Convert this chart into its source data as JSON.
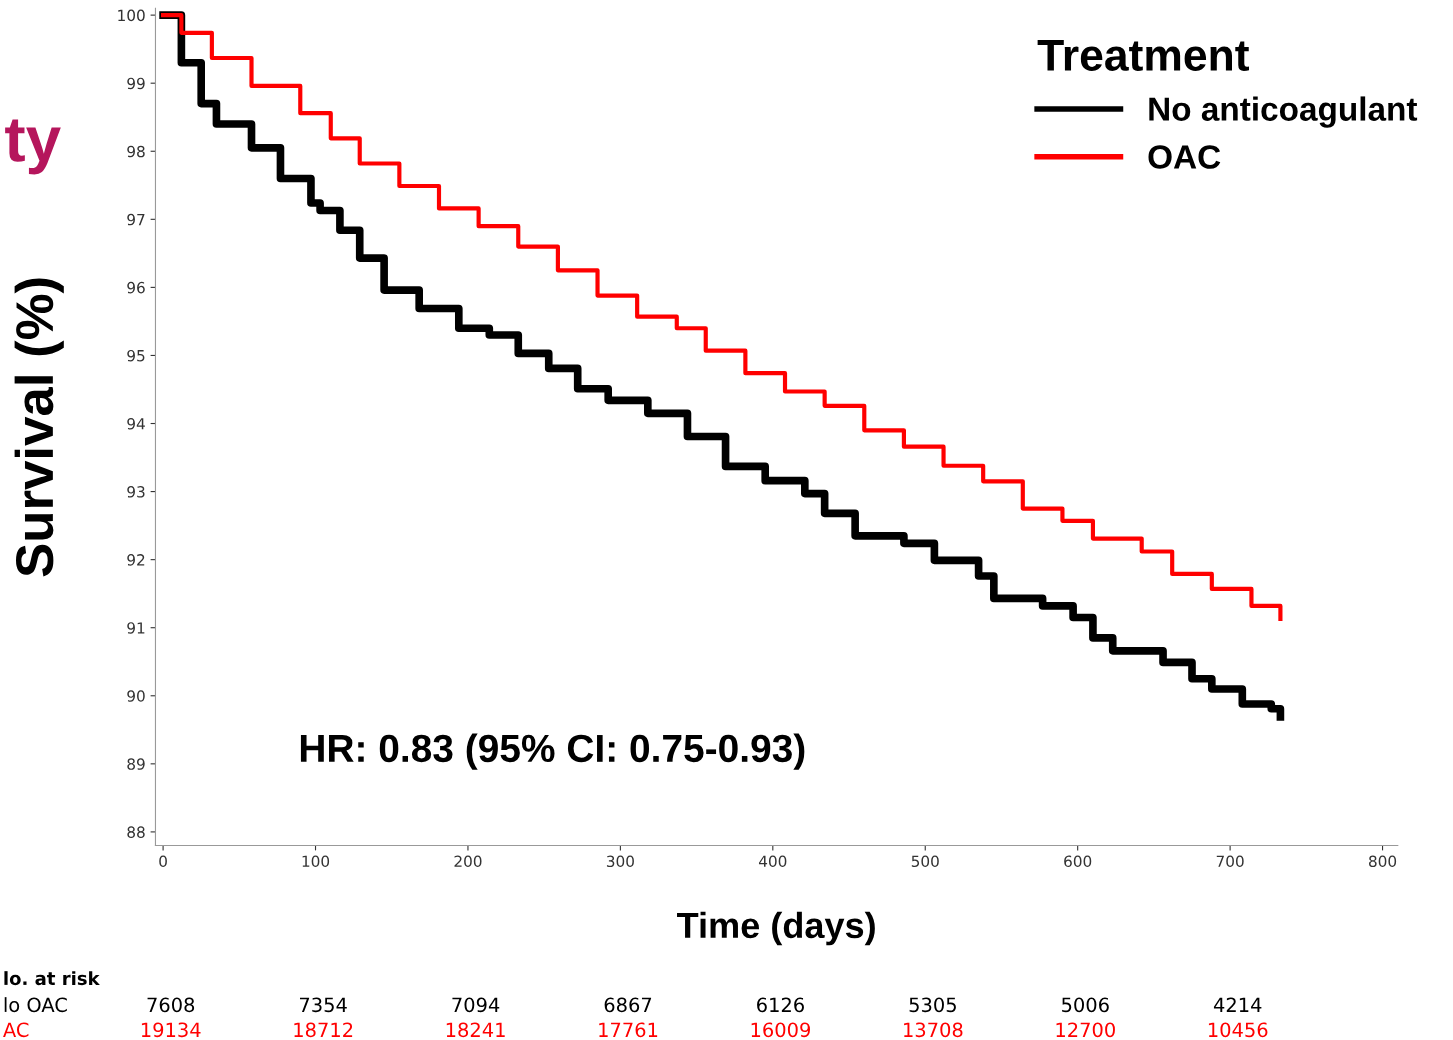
{
  "chart_data": {
    "type": "step",
    "xlabel": "Time (days)",
    "ylabel": "Survival (%)",
    "legend_title": "Treatment",
    "legend": "top right",
    "grid": false,
    "marker": "none",
    "line_style": "solid",
    "xlim": [
      -5,
      810
    ],
    "ylim": [
      87.8,
      100.1
    ],
    "xticks": [
      0,
      100,
      200,
      300,
      400,
      500,
      600,
      700,
      800
    ],
    "yticks": [
      88,
      89,
      90,
      91,
      92,
      93,
      94,
      95,
      96,
      97,
      98,
      99,
      100
    ],
    "series": [
      {
        "name": "No anticoagulant",
        "color": "#000000",
        "x": [
          0,
          12,
          25,
          35,
          58,
          77,
          97,
          103,
          116,
          129,
          145,
          168,
          194,
          214,
          233,
          253,
          272,
          292,
          318,
          344,
          369,
          395,
          421,
          434,
          454,
          486,
          506,
          535,
          545,
          577,
          597,
          610,
          623,
          656,
          675,
          688,
          708,
          727,
          733
        ],
        "values": [
          100,
          99.3,
          98.7,
          98.4,
          98.05,
          97.6,
          97.24,
          97.13,
          96.84,
          96.43,
          95.96,
          95.69,
          95.4,
          95.3,
          95.03,
          94.81,
          94.51,
          94.34,
          94.15,
          93.81,
          93.37,
          93.16,
          92.97,
          92.68,
          92.35,
          92.24,
          91.99,
          91.76,
          91.43,
          91.32,
          91.15,
          90.85,
          90.66,
          90.49,
          90.25,
          90.1,
          89.88,
          89.81,
          89.69
        ]
      },
      {
        "name": "OAC",
        "color": "#ff0000",
        "x": [
          0,
          12,
          32,
          58,
          90,
          110,
          129,
          155,
          181,
          207,
          233,
          259,
          285,
          311,
          337,
          356,
          382,
          408,
          434,
          460,
          486,
          512,
          538,
          564,
          590,
          610,
          642,
          662,
          688,
          714,
          733
        ],
        "values": [
          100,
          99.74,
          99.37,
          98.96,
          98.56,
          98.19,
          97.82,
          97.49,
          97.16,
          96.9,
          96.6,
          96.25,
          95.88,
          95.57,
          95.4,
          95.07,
          94.74,
          94.47,
          94.26,
          93.9,
          93.66,
          93.38,
          93.15,
          92.75,
          92.57,
          92.31,
          92.12,
          91.79,
          91.57,
          91.32,
          91.13
        ]
      }
    ],
    "annotations": [
      "ty",
      "HR: 0.83 (95% CI: 0.75-0.93)",
      "lo. at risk",
      "lo OAC",
      "AC",
      "7608",
      "7354",
      "7094",
      "6867",
      "6126",
      "5305",
      "5006",
      "4214",
      "19134",
      "18712",
      "18241",
      "17761",
      "16009",
      "13708",
      "12700",
      "10456"
    ]
  }
}
